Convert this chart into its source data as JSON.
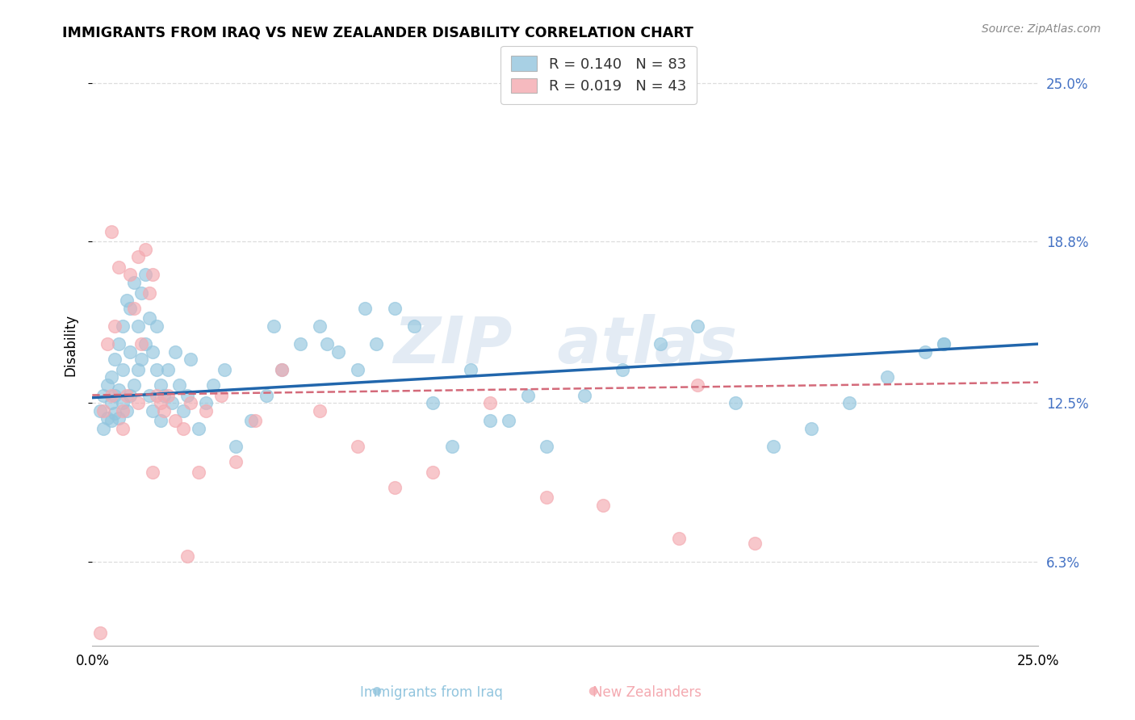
{
  "title": "IMMIGRANTS FROM IRAQ VS NEW ZEALANDER DISABILITY CORRELATION CHART",
  "source": "Source: ZipAtlas.com",
  "ylabel": "Disability",
  "xlim": [
    0.0,
    0.25
  ],
  "ylim": [
    0.03,
    0.265
  ],
  "yticks": [
    0.063,
    0.125,
    0.188,
    0.25
  ],
  "ytick_labels": [
    "6.3%",
    "12.5%",
    "18.8%",
    "25.0%"
  ],
  "blue_R": 0.14,
  "blue_N": 83,
  "pink_R": 0.019,
  "pink_N": 43,
  "blue_color": "#92c5de",
  "pink_color": "#f4a9b0",
  "blue_line_color": "#2166ac",
  "pink_line_color": "#d46a7a",
  "grid_color": "#dddddd",
  "tick_label_color": "#4472c4",
  "blue_label": "Immigrants from Iraq",
  "pink_label": "New Zealanders",
  "blue_legend_text": "R = 0.140   N = 83",
  "pink_legend_text": "R = 0.019   N = 43",
  "watermark": "ZIP  atlas",
  "blue_x": [
    0.002,
    0.003,
    0.003,
    0.004,
    0.004,
    0.005,
    0.005,
    0.005,
    0.006,
    0.006,
    0.006,
    0.007,
    0.007,
    0.007,
    0.008,
    0.008,
    0.008,
    0.009,
    0.009,
    0.01,
    0.01,
    0.01,
    0.011,
    0.011,
    0.012,
    0.012,
    0.013,
    0.013,
    0.014,
    0.014,
    0.015,
    0.015,
    0.016,
    0.016,
    0.017,
    0.017,
    0.018,
    0.018,
    0.019,
    0.02,
    0.021,
    0.022,
    0.023,
    0.024,
    0.025,
    0.026,
    0.028,
    0.03,
    0.032,
    0.035,
    0.038,
    0.042,
    0.046,
    0.05,
    0.055,
    0.06,
    0.065,
    0.07,
    0.075,
    0.08,
    0.09,
    0.1,
    0.11,
    0.12,
    0.13,
    0.14,
    0.15,
    0.16,
    0.17,
    0.18,
    0.19,
    0.2,
    0.21,
    0.22,
    0.225,
    0.048,
    0.062,
    0.072,
    0.085,
    0.095,
    0.105,
    0.115,
    0.225
  ],
  "blue_y": [
    0.122,
    0.128,
    0.115,
    0.132,
    0.119,
    0.125,
    0.118,
    0.135,
    0.121,
    0.128,
    0.142,
    0.119,
    0.13,
    0.148,
    0.125,
    0.155,
    0.138,
    0.122,
    0.165,
    0.128,
    0.145,
    0.162,
    0.132,
    0.172,
    0.155,
    0.138,
    0.168,
    0.142,
    0.148,
    0.175,
    0.158,
    0.128,
    0.122,
    0.145,
    0.138,
    0.155,
    0.118,
    0.132,
    0.128,
    0.138,
    0.125,
    0.145,
    0.132,
    0.122,
    0.128,
    0.142,
    0.115,
    0.125,
    0.132,
    0.138,
    0.108,
    0.118,
    0.128,
    0.138,
    0.148,
    0.155,
    0.145,
    0.138,
    0.148,
    0.162,
    0.125,
    0.138,
    0.118,
    0.108,
    0.128,
    0.138,
    0.148,
    0.155,
    0.125,
    0.108,
    0.115,
    0.125,
    0.135,
    0.145,
    0.148,
    0.155,
    0.148,
    0.162,
    0.155,
    0.108,
    0.118,
    0.128,
    0.148
  ],
  "pink_x": [
    0.002,
    0.003,
    0.004,
    0.005,
    0.006,
    0.007,
    0.008,
    0.009,
    0.01,
    0.011,
    0.012,
    0.013,
    0.014,
    0.015,
    0.016,
    0.017,
    0.018,
    0.019,
    0.02,
    0.022,
    0.024,
    0.026,
    0.028,
    0.03,
    0.034,
    0.038,
    0.043,
    0.05,
    0.06,
    0.07,
    0.08,
    0.09,
    0.105,
    0.12,
    0.135,
    0.155,
    0.175,
    0.005,
    0.008,
    0.012,
    0.016,
    0.025,
    0.16
  ],
  "pink_y": [
    0.035,
    0.122,
    0.148,
    0.192,
    0.155,
    0.178,
    0.122,
    0.128,
    0.175,
    0.162,
    0.182,
    0.148,
    0.185,
    0.168,
    0.175,
    0.128,
    0.125,
    0.122,
    0.128,
    0.118,
    0.115,
    0.125,
    0.098,
    0.122,
    0.128,
    0.102,
    0.118,
    0.138,
    0.122,
    0.108,
    0.092,
    0.098,
    0.125,
    0.088,
    0.085,
    0.072,
    0.07,
    0.128,
    0.115,
    0.125,
    0.098,
    0.065,
    0.132
  ],
  "blue_trend_x": [
    0.0,
    0.25
  ],
  "blue_trend_y": [
    0.127,
    0.148
  ],
  "pink_trend_x": [
    0.0,
    0.25
  ],
  "pink_trend_y": [
    0.128,
    0.133
  ]
}
